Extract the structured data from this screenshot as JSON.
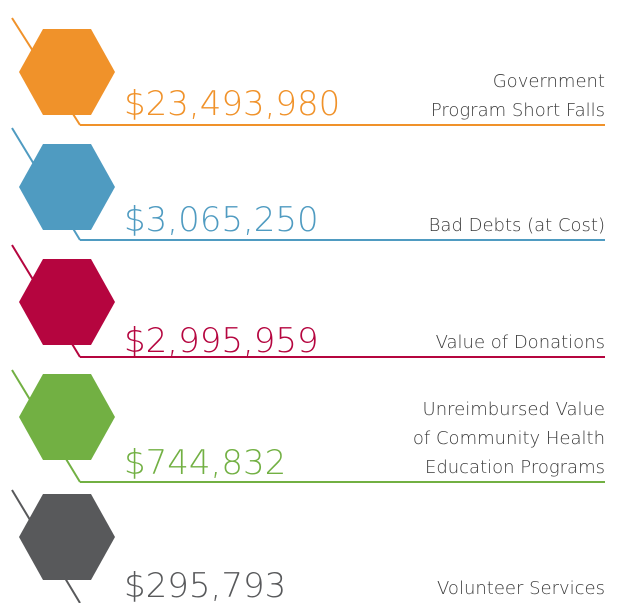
{
  "items": [
    {
      "amount": "$23,493,980",
      "label": [
        "Government",
        "Program Short Falls"
      ],
      "color": "#f0922a"
    },
    {
      "amount": "$3,065,250",
      "label": [
        "Bad Debts (at Cost)"
      ],
      "color": "#4f9bc1"
    },
    {
      "amount": "$2,995,959",
      "label": [
        "Value of Donations"
      ],
      "color": "#b5053f"
    },
    {
      "amount": "$744,832",
      "label": [
        "Unreimbursed Value",
        "of Community Health",
        "Education Programs"
      ],
      "color": "#72b043"
    },
    {
      "amount": "$295,793",
      "label": [
        "Volunteer Services"
      ],
      "color": "#58595b"
    }
  ]
}
